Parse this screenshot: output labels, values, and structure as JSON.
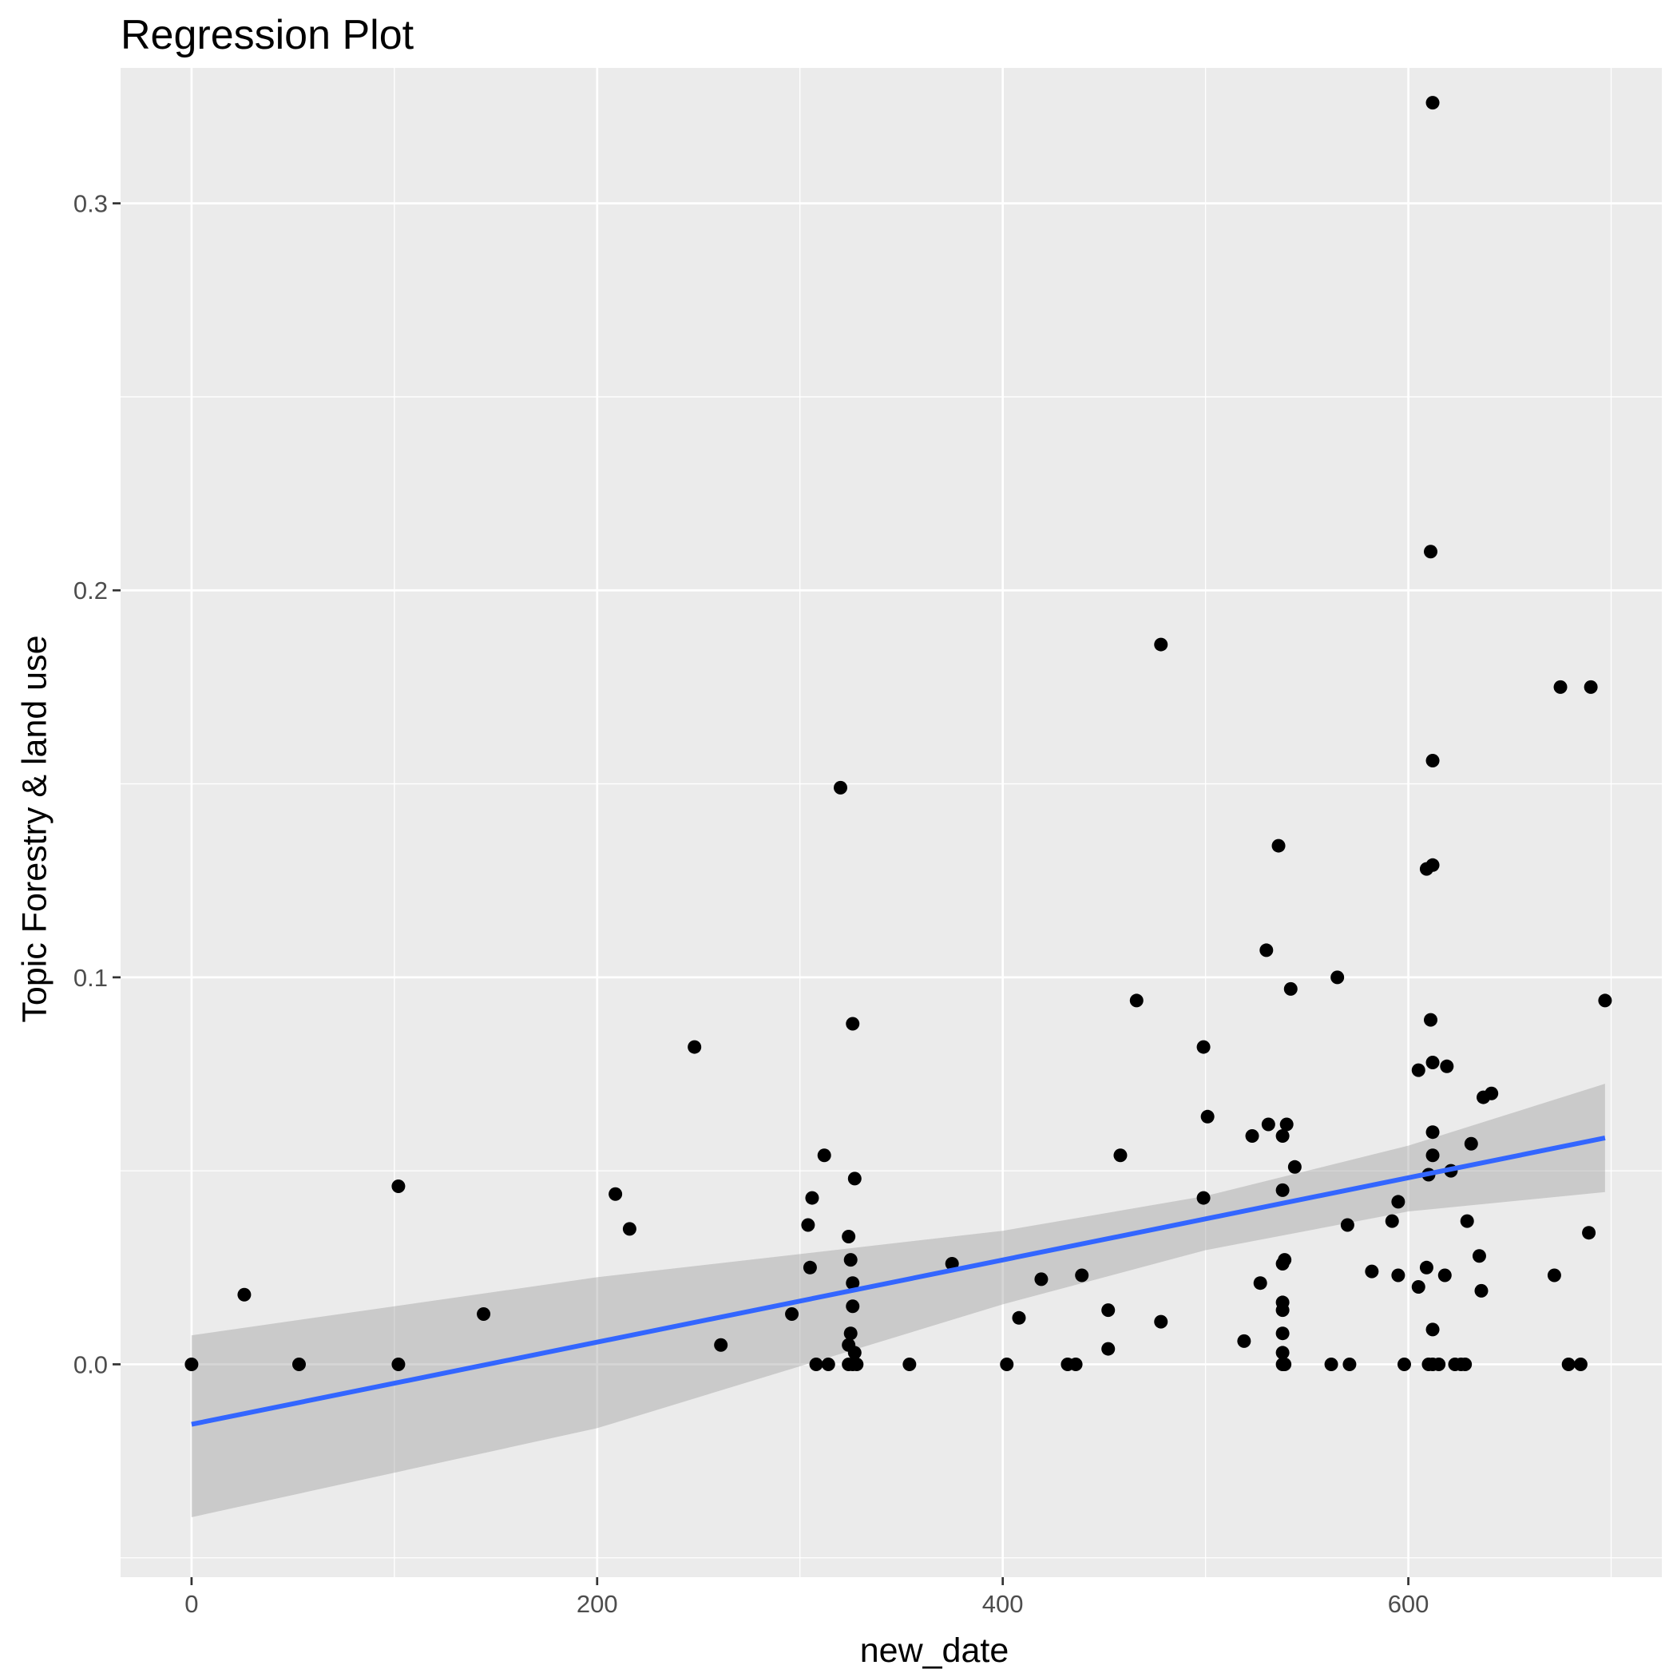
{
  "chart_data": {
    "type": "scatter",
    "title": "Regression Plot",
    "xlabel": "new_date",
    "ylabel": "Topic Forestry & land use",
    "xlim": [
      -35,
      725
    ],
    "ylim": [
      -0.055,
      0.335
    ],
    "x_ticks": [
      0,
      200,
      400,
      600
    ],
    "y_ticks": [
      0.0,
      0.1,
      0.2,
      0.3
    ],
    "x_tick_labels": [
      "0",
      "200",
      "400",
      "600"
    ],
    "y_tick_labels": [
      "0.0",
      "0.1",
      "0.2",
      "0.3"
    ],
    "grid": true,
    "panel_background": "#ebebeb",
    "point_color": "#000000",
    "regression_line": {
      "color": "#3366ff",
      "x": [
        0,
        697
      ],
      "y": [
        -0.0155,
        0.0585
      ]
    },
    "confidence_band": {
      "color": "#999999",
      "x": [
        0,
        200,
        400,
        500,
        600,
        697
      ],
      "lower": [
        -0.0395,
        -0.0165,
        0.0155,
        0.0295,
        0.0395,
        0.0445
      ],
      "upper": [
        0.0075,
        0.0225,
        0.0345,
        0.0435,
        0.0565,
        0.0725
      ]
    },
    "points": [
      [
        0,
        0.0
      ],
      [
        26,
        0.018
      ],
      [
        53,
        0.0
      ],
      [
        102,
        0.0
      ],
      [
        102,
        0.046
      ],
      [
        144,
        0.013
      ],
      [
        209,
        0.044
      ],
      [
        216,
        0.035
      ],
      [
        248,
        0.082
      ],
      [
        261,
        0.005
      ],
      [
        296,
        0.013
      ],
      [
        304,
        0.036
      ],
      [
        305,
        0.025
      ],
      [
        306,
        0.043
      ],
      [
        308,
        0.0
      ],
      [
        312,
        0.054
      ],
      [
        314,
        0.0
      ],
      [
        320,
        0.149
      ],
      [
        324,
        0.0
      ],
      [
        324,
        0.005
      ],
      [
        324,
        0.033
      ],
      [
        325,
        0.008
      ],
      [
        325,
        0.027
      ],
      [
        326,
        0.0
      ],
      [
        326,
        0.088
      ],
      [
        326,
        0.021
      ],
      [
        326,
        0.015
      ],
      [
        327,
        0.003
      ],
      [
        327,
        0.048
      ],
      [
        328,
        0.0
      ],
      [
        354,
        0.0
      ],
      [
        375,
        0.026
      ],
      [
        402,
        0.0
      ],
      [
        408,
        0.012
      ],
      [
        419,
        0.022
      ],
      [
        432,
        0.0
      ],
      [
        436,
        0.0
      ],
      [
        439,
        0.023
      ],
      [
        452,
        0.014
      ],
      [
        452,
        0.004
      ],
      [
        458,
        0.054
      ],
      [
        466,
        0.094
      ],
      [
        478,
        0.186
      ],
      [
        478,
        0.011
      ],
      [
        499,
        0.043
      ],
      [
        499,
        0.082
      ],
      [
        501,
        0.064
      ],
      [
        519,
        0.006
      ],
      [
        523,
        0.059
      ],
      [
        527,
        0.021
      ],
      [
        530,
        0.107
      ],
      [
        531,
        0.062
      ],
      [
        536,
        0.134
      ],
      [
        538,
        0.059
      ],
      [
        538,
        0.045
      ],
      [
        538,
        0.026
      ],
      [
        538,
        0.016
      ],
      [
        538,
        0.014
      ],
      [
        538,
        0.008
      ],
      [
        538,
        0.003
      ],
      [
        538,
        0.0
      ],
      [
        539,
        0.0
      ],
      [
        539,
        0.027
      ],
      [
        540,
        0.062
      ],
      [
        542,
        0.097
      ],
      [
        544,
        0.051
      ],
      [
        562,
        0.0
      ],
      [
        565,
        0.1
      ],
      [
        570,
        0.036
      ],
      [
        571,
        0.0
      ],
      [
        582,
        0.024
      ],
      [
        592,
        0.037
      ],
      [
        595,
        0.042
      ],
      [
        595,
        0.023
      ],
      [
        598,
        0.0
      ],
      [
        605,
        0.076
      ],
      [
        605,
        0.02
      ],
      [
        609,
        0.025
      ],
      [
        609,
        0.128
      ],
      [
        610,
        0.0
      ],
      [
        610,
        0.049
      ],
      [
        611,
        0.089
      ],
      [
        611,
        0.21
      ],
      [
        612,
        0.078
      ],
      [
        612,
        0.054
      ],
      [
        612,
        0.06
      ],
      [
        612,
        0.009
      ],
      [
        612,
        0.156
      ],
      [
        612,
        0.129
      ],
      [
        612,
        0.326
      ],
      [
        612,
        0.0
      ],
      [
        615,
        0.0
      ],
      [
        618,
        0.023
      ],
      [
        619,
        0.077
      ],
      [
        621,
        0.05
      ],
      [
        623,
        0.0
      ],
      [
        626,
        0.0
      ],
      [
        628,
        0.0
      ],
      [
        629,
        0.037
      ],
      [
        631,
        0.057
      ],
      [
        635,
        0.028
      ],
      [
        636,
        0.019
      ],
      [
        637,
        0.069
      ],
      [
        641,
        0.07
      ],
      [
        672,
        0.023
      ],
      [
        675,
        0.175
      ],
      [
        679,
        0.0
      ],
      [
        685,
        0.0
      ],
      [
        689,
        0.034
      ],
      [
        690,
        0.175
      ],
      [
        697,
        0.094
      ]
    ]
  }
}
